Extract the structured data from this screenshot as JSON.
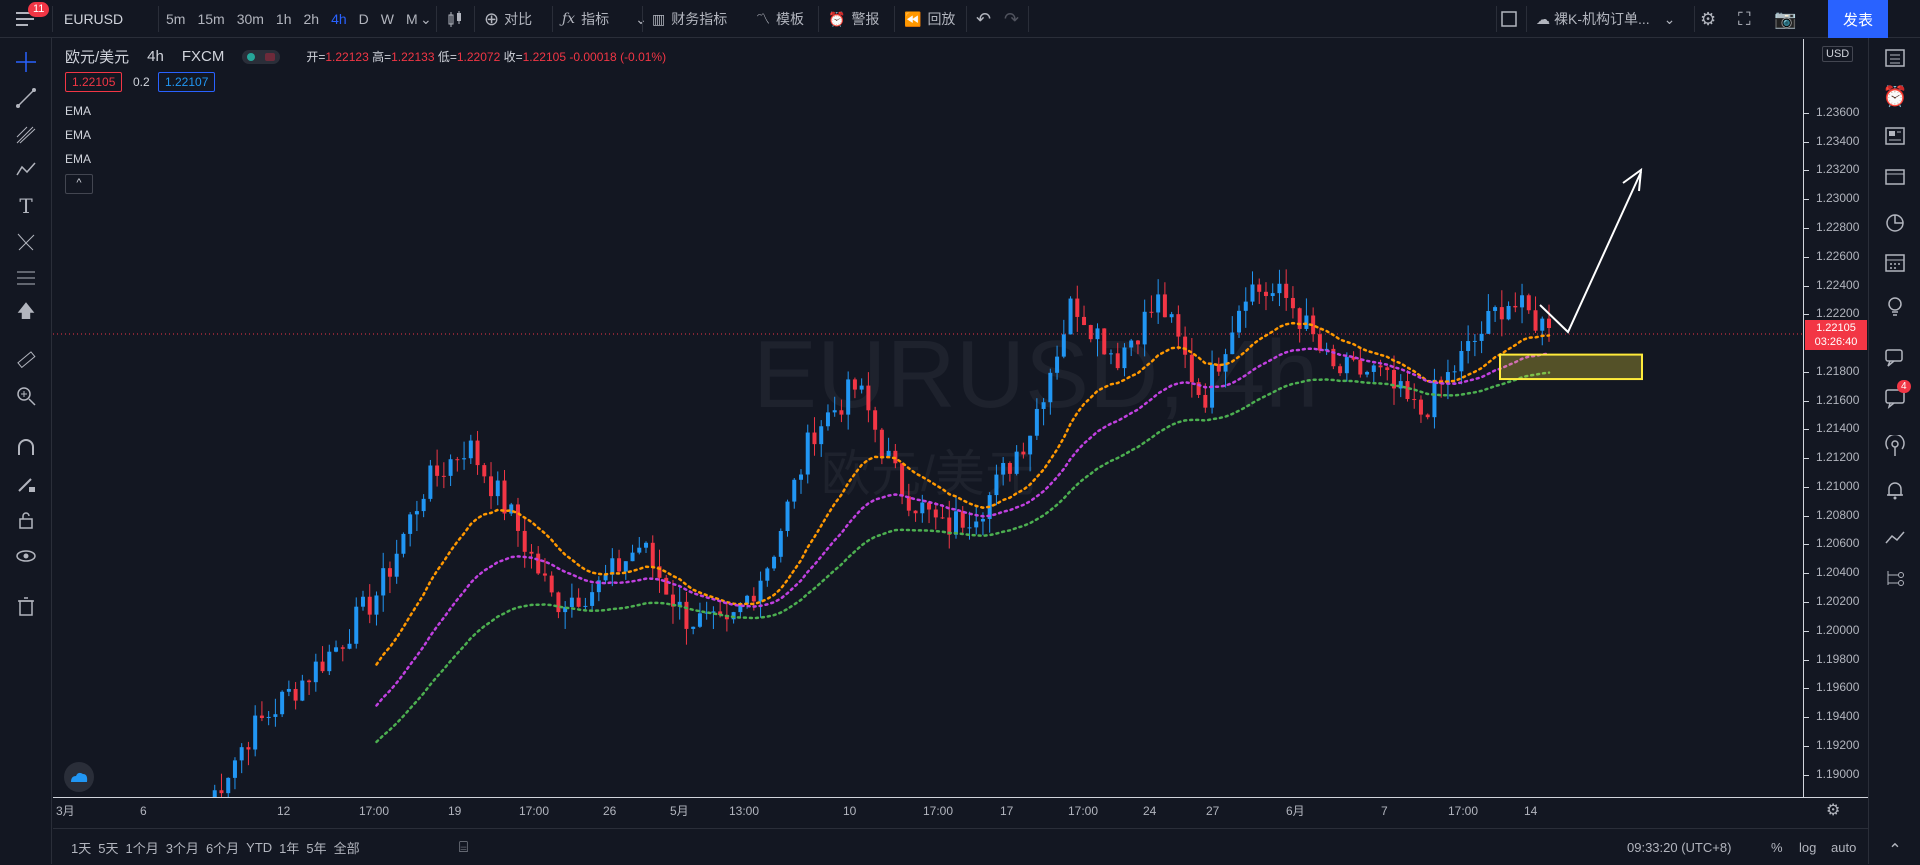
{
  "toolbar": {
    "notif_count": "11",
    "symbol": "EURUSD",
    "timeframes": [
      {
        "label": "5m",
        "active": false
      },
      {
        "label": "15m",
        "active": false
      },
      {
        "label": "30m",
        "active": false
      },
      {
        "label": "1h",
        "active": false
      },
      {
        "label": "2h",
        "active": false
      },
      {
        "label": "4h",
        "active": true
      },
      {
        "label": "D",
        "active": false
      },
      {
        "label": "W",
        "active": false
      },
      {
        "label": "M",
        "active": false
      }
    ],
    "compare_label": "对比",
    "indicators_label": "指标",
    "financials_label": "财务指标",
    "templates_label": "模板",
    "alert_label": "警报",
    "replay_label": "回放",
    "layout_name": "裸K-机构订单...",
    "publish_label": "发表"
  },
  "legend": {
    "pair": "欧元/美元",
    "interval": "4h",
    "source": "FXCM",
    "open_label": "开=",
    "open": "1.22123",
    "high_label": "高=",
    "high": "1.22133",
    "low_label": "低=",
    "low": "1.22072",
    "close_label": "收=",
    "close": "1.22105",
    "change": "-0.00018 (-0.01%)",
    "bid": "1.22105",
    "spread": "0.2",
    "ask": "1.22107",
    "indicators": [
      "EMA",
      "EMA",
      "EMA"
    ],
    "collapse_glyph": "^"
  },
  "watermark": {
    "line1": "EURUSD, 4h",
    "line2": "欧元/美元"
  },
  "price_axis": {
    "currency": "USD",
    "labels": [
      "1.23600",
      "1.23400",
      "1.23200",
      "1.23000",
      "1.22800",
      "1.22600",
      "1.22400",
      "1.22200",
      "1.21800",
      "1.21600",
      "1.21400",
      "1.21200",
      "1.21000",
      "1.20800",
      "1.20600",
      "1.20400",
      "1.20200",
      "1.20000",
      "1.19800",
      "1.19600",
      "1.19400",
      "1.19200",
      "1.19000"
    ],
    "current_price": "1.22105",
    "countdown": "03:26:40"
  },
  "time_axis": {
    "labels": [
      "3月",
      "6",
      "12",
      "17:00",
      "19",
      "17:00",
      "26",
      "5月",
      "13:00",
      "10",
      "17:00",
      "17",
      "17:00",
      "24",
      "27",
      "6月",
      "7",
      "17:00",
      "14"
    ]
  },
  "bottom": {
    "ranges": [
      "1天",
      "5天",
      "1个月",
      "3个月",
      "6个月",
      "YTD",
      "1年",
      "5年",
      "全部"
    ],
    "clock": "09:33:20 (UTC+8)",
    "percent": "%",
    "log": "log",
    "auto": "auto"
  },
  "right_panel": {
    "chat_badge": "4"
  },
  "colors": {
    "up": "#2196f3",
    "down": "#f23645",
    "ema1": "#ff9800",
    "ema2": "#c040e0",
    "ema3": "#4caf50",
    "zone": "#ffeb3b"
  },
  "chart_data": {
    "type": "candlestick",
    "symbol": "EURUSD",
    "ylim": [
      1.189,
      1.2385
    ],
    "approx_close_path": [
      1.188,
      1.193,
      1.196,
      1.199,
      1.203,
      1.21,
      1.213,
      1.208,
      1.202,
      1.203,
      1.206,
      1.201,
      1.2,
      1.205,
      1.214,
      1.217,
      1.21,
      1.207,
      1.209,
      1.214,
      1.223,
      1.219,
      1.223,
      1.216,
      1.224,
      1.223,
      1.218,
      1.218,
      1.215,
      1.219,
      1.223,
      1.221
    ],
    "current_close": 1.22105,
    "zone": {
      "low": 1.2175,
      "high": 1.2192
    },
    "ema_fast_end": 1.22,
    "ema_mid_end": 1.2185,
    "ema_slow_end": 1.2167
  }
}
